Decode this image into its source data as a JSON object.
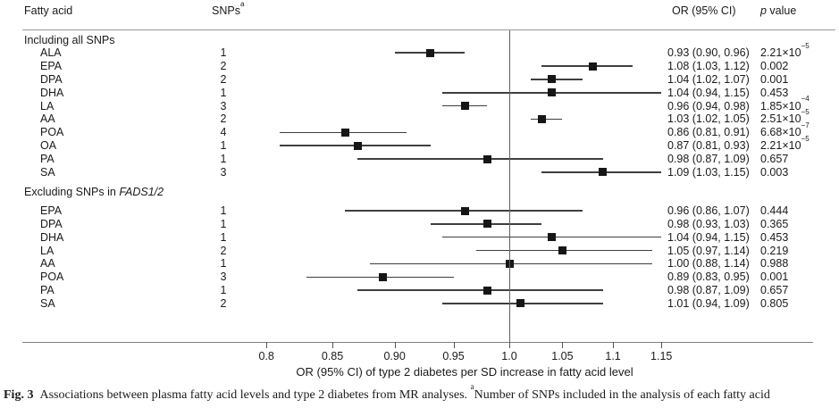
{
  "header": {
    "fatty_acid": "Fatty acid",
    "snps": "SNPs",
    "snps_sup": "a",
    "or_ci": "OR (95% CI)",
    "p_italic": "p",
    "p_rest": " value"
  },
  "axis": {
    "scale": "log",
    "ticks": [
      0.8,
      0.85,
      0.9,
      0.95,
      1.0,
      1.05,
      1.1,
      1.15
    ],
    "tick_labels": [
      "0.8",
      "0.85",
      "0.90",
      "0.95",
      "1.0",
      "1.05",
      "1.1",
      "1.15"
    ],
    "reference_line": 1.0,
    "title": "OR (95% CI) of type 2 diabetes per SD increase in fatty acid level"
  },
  "chart_data": {
    "type": "scatter",
    "variant": "forest-plot",
    "xlabel": "OR (95% CI) of type 2 diabetes per SD increase in fatty acid level",
    "x_scale": "log",
    "xlim": [
      0.78,
      1.18
    ],
    "reference_x": 1.0,
    "columns": [
      "Fatty acid",
      "SNPs",
      "OR (95% CI)",
      "p value"
    ],
    "sections": [
      {
        "title": "Including all SNPs",
        "title_italic": "",
        "rows": [
          {
            "label": "ALA",
            "snps": "1",
            "or": 0.93,
            "ci_low": 0.9,
            "ci_high": 0.96,
            "or_text": "0.93 (0.90, 0.96)",
            "p": "2.21×10^−5"
          },
          {
            "label": "EPA",
            "snps": "2",
            "or": 1.08,
            "ci_low": 1.03,
            "ci_high": 1.12,
            "or_text": "1.08 (1.03, 1.12)",
            "p": "0.002"
          },
          {
            "label": "DPA",
            "snps": "2",
            "or": 1.04,
            "ci_low": 1.02,
            "ci_high": 1.07,
            "or_text": "1.04 (1.02, 1.07)",
            "p": "0.001"
          },
          {
            "label": "DHA",
            "snps": "1",
            "or": 1.04,
            "ci_low": 0.94,
            "ci_high": 1.15,
            "or_text": "1.04 (0.94, 1.15)",
            "p": "0.453"
          },
          {
            "label": "LA",
            "snps": "3",
            "or": 0.96,
            "ci_low": 0.94,
            "ci_high": 0.98,
            "or_text": "0.96 (0.94, 0.98)",
            "p": "1.85×10^−4"
          },
          {
            "label": "AA",
            "snps": "2",
            "or": 1.03,
            "ci_low": 1.02,
            "ci_high": 1.05,
            "or_text": "1.03 (1.02, 1.05)",
            "p": "2.51×10^−5"
          },
          {
            "label": "POA",
            "snps": "4",
            "or": 0.86,
            "ci_low": 0.81,
            "ci_high": 0.91,
            "or_text": "0.86 (0.81, 0.91)",
            "p": "6.68×10^−7"
          },
          {
            "label": "OA",
            "snps": "1",
            "or": 0.87,
            "ci_low": 0.81,
            "ci_high": 0.93,
            "or_text": "0.87 (0.81, 0.93)",
            "p": "2.21×10^−5"
          },
          {
            "label": "PA",
            "snps": "1",
            "or": 0.98,
            "ci_low": 0.87,
            "ci_high": 1.09,
            "or_text": "0.98 (0.87, 1.09)",
            "p": "0.657"
          },
          {
            "label": "SA",
            "snps": "3",
            "or": 1.09,
            "ci_low": 1.03,
            "ci_high": 1.15,
            "or_text": "1.09 (1.03, 1.15)",
            "p": "0.003"
          }
        ]
      },
      {
        "title": "Excluding SNPs in ",
        "title_italic": "FADS1/2",
        "rows": [
          {
            "label": "EPA",
            "snps": "1",
            "or": 0.96,
            "ci_low": 0.86,
            "ci_high": 1.07,
            "or_text": "0.96 (0.86, 1.07)",
            "p": "0.444"
          },
          {
            "label": "DPA",
            "snps": "1",
            "or": 0.98,
            "ci_low": 0.93,
            "ci_high": 1.03,
            "or_text": "0.98 (0.93, 1.03)",
            "p": "0.365"
          },
          {
            "label": "DHA",
            "snps": "1",
            "or": 1.04,
            "ci_low": 0.94,
            "ci_high": 1.15,
            "or_text": "1.04 (0.94, 1.15)",
            "p": "0.453"
          },
          {
            "label": "LA",
            "snps": "2",
            "or": 1.05,
            "ci_low": 0.97,
            "ci_high": 1.14,
            "or_text": "1.05 (0.97, 1.14)",
            "p": "0.219"
          },
          {
            "label": "AA",
            "snps": "1",
            "or": 1.0,
            "ci_low": 0.88,
            "ci_high": 1.14,
            "or_text": "1.00 (0.88, 1.14)",
            "p": "0.988"
          },
          {
            "label": "POA",
            "snps": "3",
            "or": 0.89,
            "ci_low": 0.83,
            "ci_high": 0.95,
            "or_text": "0.89 (0.83, 0.95)",
            "p": "0.001"
          },
          {
            "label": "PA",
            "snps": "1",
            "or": 0.98,
            "ci_low": 0.87,
            "ci_high": 1.09,
            "or_text": "0.98 (0.87, 1.09)",
            "p": "0.657"
          },
          {
            "label": "SA",
            "snps": "2",
            "or": 1.01,
            "ci_low": 0.94,
            "ci_high": 1.09,
            "or_text": "1.01 (0.94, 1.09)",
            "p": "0.805"
          }
        ]
      }
    ]
  },
  "caption": {
    "label": "Fig. 3",
    "text": "Associations between plasma fatty acid levels and type 2 diabetes from MR analyses. ",
    "sup": "a",
    "text2": "Number of SNPs included in the analysis of each fatty acid"
  },
  "colors": {
    "marker": "#161616",
    "ci_line": "#3f3f3f",
    "rule": "#9b9b9b",
    "reference_line": "#606060",
    "text": "#1a1a1a"
  }
}
